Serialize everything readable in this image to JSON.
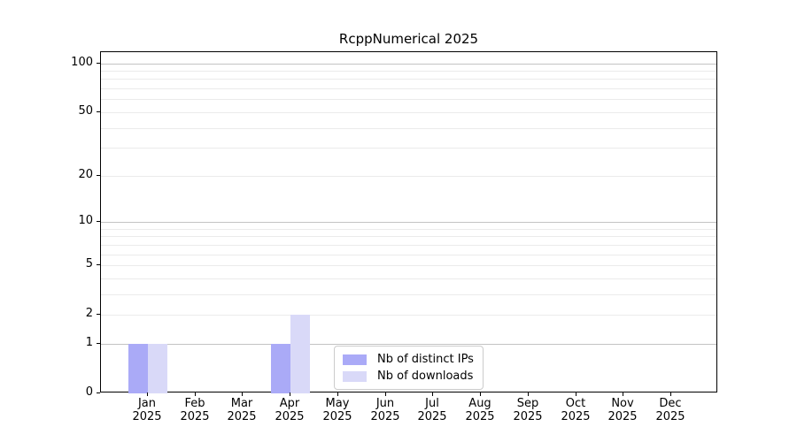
{
  "window": {
    "background": "#ffffff"
  },
  "chart_data": {
    "type": "bar",
    "title": "RcppNumerical 2025",
    "categories": [
      "Jan",
      "Feb",
      "Mar",
      "Apr",
      "May",
      "Jun",
      "Jul",
      "Aug",
      "Sep",
      "Oct",
      "Nov",
      "Dec"
    ],
    "category_year": "2025",
    "series": [
      {
        "name": "Nb of distinct IPs",
        "color": "#aaaaf7",
        "values": [
          1,
          0,
          0,
          1,
          0,
          0,
          0,
          0,
          0,
          0,
          0,
          0
        ]
      },
      {
        "name": "Nb of downloads",
        "color": "#d9d9f8",
        "values": [
          1,
          0,
          0,
          2,
          0,
          0,
          0,
          0,
          0,
          0,
          0,
          0
        ]
      }
    ],
    "xlabel": "",
    "ylabel": "",
    "y_scale": "log1p",
    "y_ticks": [
      0,
      1,
      2,
      5,
      10,
      20,
      50,
      100
    ],
    "major_gridlines": [
      1,
      10,
      100
    ],
    "minor_gridlines": [
      2,
      3,
      4,
      5,
      6,
      7,
      8,
      9,
      20,
      30,
      40,
      50,
      60,
      70,
      80,
      90
    ],
    "ylim": [
      0,
      118
    ],
    "grid": true,
    "legend_position": "inside-bottom-center",
    "colors": {
      "major_grid": "#c3c3c3",
      "minor_grid": "#ebebeb",
      "axis": "#000000",
      "text": "#000000",
      "plot_background": "#ffffff"
    }
  }
}
